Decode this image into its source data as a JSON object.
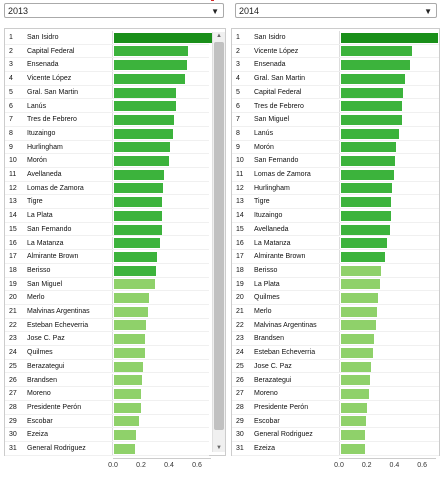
{
  "colors": {
    "dark_green": "#1a8f1a",
    "mid_green": "#3cb33c",
    "light_green": "#8fd16a"
  },
  "left": {
    "select_value": "2013",
    "ticks": [
      "0.0",
      "0.2",
      "0.4",
      "0.6"
    ],
    "rows": [
      {
        "rank": "1",
        "name": "San Isidro",
        "value": 0.7
      },
      {
        "rank": "2",
        "name": "Capital Federal",
        "value": 0.53
      },
      {
        "rank": "3",
        "name": "Ensenada",
        "value": 0.52
      },
      {
        "rank": "4",
        "name": "Vicente López",
        "value": 0.51
      },
      {
        "rank": "5",
        "name": "Gral. San Martin",
        "value": 0.44
      },
      {
        "rank": "6",
        "name": "Lanús",
        "value": 0.44
      },
      {
        "rank": "7",
        "name": "Tres de Febrero",
        "value": 0.43
      },
      {
        "rank": "8",
        "name": "Ituzaingo",
        "value": 0.42
      },
      {
        "rank": "9",
        "name": "Hurlingham",
        "value": 0.4
      },
      {
        "rank": "10",
        "name": "Morón",
        "value": 0.39
      },
      {
        "rank": "11",
        "name": "Avellaneda",
        "value": 0.36
      },
      {
        "rank": "12",
        "name": "Lomas de Zamora",
        "value": 0.35
      },
      {
        "rank": "13",
        "name": "Tigre",
        "value": 0.34
      },
      {
        "rank": "14",
        "name": "La Plata",
        "value": 0.34
      },
      {
        "rank": "15",
        "name": "San Fernando",
        "value": 0.34
      },
      {
        "rank": "16",
        "name": "La Matanza",
        "value": 0.33
      },
      {
        "rank": "17",
        "name": "Almirante Brown",
        "value": 0.31
      },
      {
        "rank": "18",
        "name": "Berisso",
        "value": 0.3
      },
      {
        "rank": "19",
        "name": "San Miguel",
        "value": 0.29
      },
      {
        "rank": "20",
        "name": "Merlo",
        "value": 0.25
      },
      {
        "rank": "21",
        "name": "Malvinas Argentinas",
        "value": 0.24
      },
      {
        "rank": "22",
        "name": "Esteban Echeverria",
        "value": 0.23
      },
      {
        "rank": "23",
        "name": "Jose C. Paz",
        "value": 0.22
      },
      {
        "rank": "24",
        "name": "Quilmes",
        "value": 0.22
      },
      {
        "rank": "25",
        "name": "Berazategui",
        "value": 0.21
      },
      {
        "rank": "26",
        "name": "Brandsen",
        "value": 0.2
      },
      {
        "rank": "27",
        "name": "Moreno",
        "value": 0.19
      },
      {
        "rank": "28",
        "name": "Presidente Perón",
        "value": 0.19
      },
      {
        "rank": "29",
        "name": "Escobar",
        "value": 0.18
      },
      {
        "rank": "30",
        "name": "Ezeiza",
        "value": 0.16
      },
      {
        "rank": "31",
        "name": "General Rodriguez",
        "value": 0.15
      }
    ]
  },
  "right": {
    "select_value": "2014",
    "ticks": [
      "0.0",
      "0.2",
      "0.4",
      "0.6"
    ],
    "rows": [
      {
        "rank": "1",
        "name": "San Isidro",
        "value": 0.7
      },
      {
        "rank": "2",
        "name": "Vicente López",
        "value": 0.51
      },
      {
        "rank": "3",
        "name": "Ensenada",
        "value": 0.5
      },
      {
        "rank": "4",
        "name": "Gral. San Martin",
        "value": 0.46
      },
      {
        "rank": "5",
        "name": "Capital Federal",
        "value": 0.45
      },
      {
        "rank": "6",
        "name": "Tres de Febrero",
        "value": 0.44
      },
      {
        "rank": "7",
        "name": "San Miguel",
        "value": 0.44
      },
      {
        "rank": "8",
        "name": "Lanús",
        "value": 0.42
      },
      {
        "rank": "9",
        "name": "Morón",
        "value": 0.4
      },
      {
        "rank": "10",
        "name": "San Fernando",
        "value": 0.39
      },
      {
        "rank": "11",
        "name": "Lomas de Zamora",
        "value": 0.38
      },
      {
        "rank": "12",
        "name": "Hurlingham",
        "value": 0.37
      },
      {
        "rank": "13",
        "name": "Tigre",
        "value": 0.36
      },
      {
        "rank": "14",
        "name": "Ituzaingo",
        "value": 0.36
      },
      {
        "rank": "15",
        "name": "Avellaneda",
        "value": 0.35
      },
      {
        "rank": "16",
        "name": "La Matanza",
        "value": 0.33
      },
      {
        "rank": "17",
        "name": "Almirante Brown",
        "value": 0.32
      },
      {
        "rank": "18",
        "name": "Berisso",
        "value": 0.29
      },
      {
        "rank": "19",
        "name": "La Plata",
        "value": 0.28
      },
      {
        "rank": "20",
        "name": "Quilmes",
        "value": 0.27
      },
      {
        "rank": "21",
        "name": "Merlo",
        "value": 0.26
      },
      {
        "rank": "22",
        "name": "Malvinas Argentinas",
        "value": 0.25
      },
      {
        "rank": "23",
        "name": "Brandsen",
        "value": 0.24
      },
      {
        "rank": "24",
        "name": "Esteban Echeverria",
        "value": 0.23
      },
      {
        "rank": "25",
        "name": "Jose C. Paz",
        "value": 0.22
      },
      {
        "rank": "26",
        "name": "Berazategui",
        "value": 0.21
      },
      {
        "rank": "27",
        "name": "Moreno",
        "value": 0.2
      },
      {
        "rank": "28",
        "name": "Presidente Perón",
        "value": 0.19
      },
      {
        "rank": "29",
        "name": "Escobar",
        "value": 0.18
      },
      {
        "rank": "30",
        "name": "General Rodriguez",
        "value": 0.17
      },
      {
        "rank": "31",
        "name": "Ezeiza",
        "value": 0.17
      }
    ]
  }
}
